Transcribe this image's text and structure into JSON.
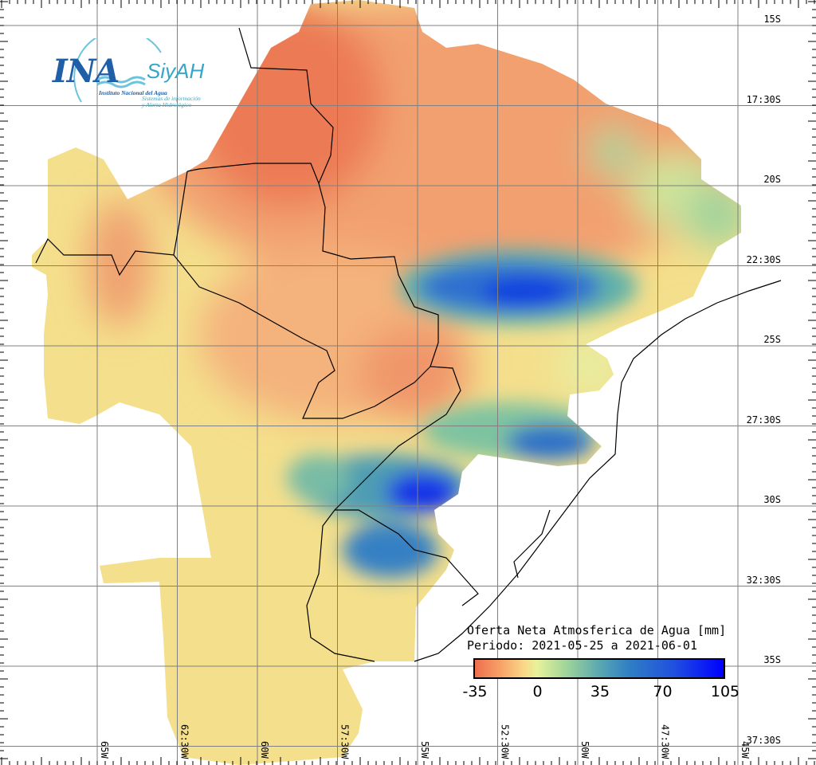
{
  "logo": {
    "acronym": "INA",
    "system": "SiyAH",
    "institute": "Instituto Nacional del Agua",
    "system_line1": "Sistemas de información",
    "system_line2": "y Alerta Hidrológico"
  },
  "legend": {
    "title": "Oferta Neta Atmosferica de Agua [mm]",
    "period": "Periodo: 2021-05-25 a 2021-06-01",
    "ticks": [
      "-35",
      "0",
      "35",
      "70",
      "105"
    ],
    "range": [
      -35,
      105
    ]
  },
  "axes": {
    "lon_labels": [
      "65W",
      "62:30W",
      "60W",
      "57:30W",
      "55W",
      "52:30W",
      "50W",
      "47:30W",
      "45W"
    ],
    "lat_labels": [
      "15S",
      "17:30S",
      "20S",
      "22:30S",
      "25S",
      "27:30S",
      "30S",
      "32:30S",
      "35S",
      "37:30S"
    ]
  },
  "colors": {
    "deficit": "#f08a5a",
    "neutral": "#f4e08e",
    "surplus": "#0000ff"
  }
}
